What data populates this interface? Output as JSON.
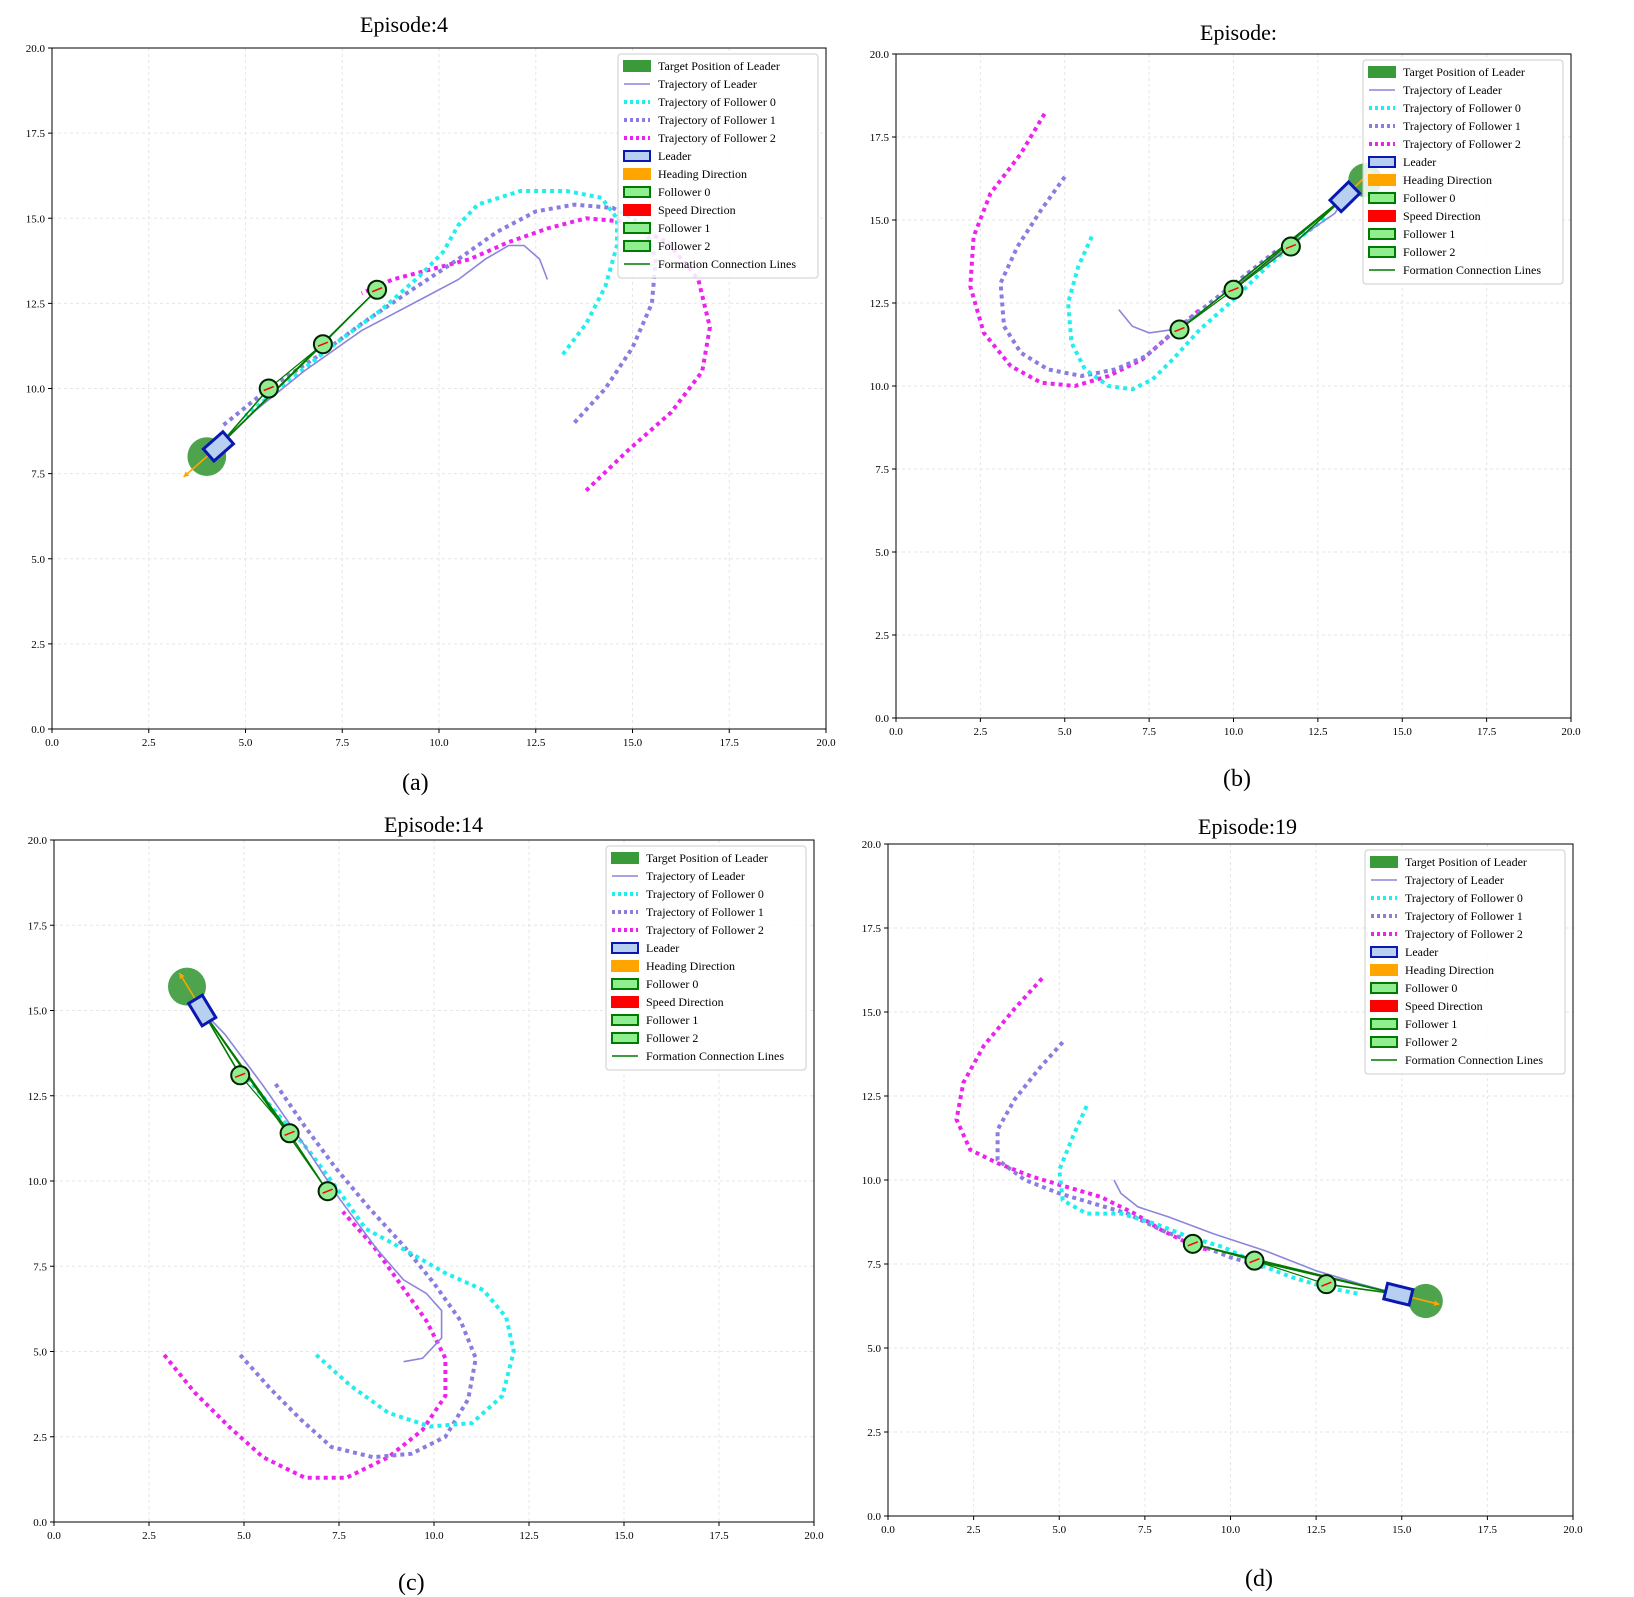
{
  "colors": {
    "target": "#3a9a3a",
    "leader_traj": "#8b86dc",
    "follower0": "#22eef0",
    "follower1": "#8a7de0",
    "follower2": "#ee22ee",
    "leader_edge": "#0a17b0",
    "leader_fill": "#b7cff0",
    "heading": "#ffa500",
    "speed": "#ff0000",
    "follower_edge": "#007a00",
    "follower_fill": "#90ee90",
    "formation": "#007a00"
  },
  "legend_labels": {
    "target": "Target Position of Leader",
    "leader_traj": "Trajectory of Leader",
    "f0_traj": "Trajectory of Follower 0",
    "f1_traj": "Trajectory of Follower 1",
    "f2_traj": "Trajectory of Follower 2",
    "leader": "Leader",
    "heading": "Heading Direction",
    "follower0": "Follower 0",
    "speed": "Speed Direction",
    "follower1": "Follower 1",
    "follower2": "Follower 2",
    "formation": "Formation Connection Lines"
  },
  "chart_data": [
    {
      "type": "line",
      "title": "Episode:4",
      "caption": "(a)",
      "xlim": [
        0,
        20
      ],
      "ylim": [
        0,
        20
      ],
      "xticks": [
        "0.0",
        "2.5",
        "5.0",
        "7.5",
        "10.0",
        "12.5",
        "15.0",
        "17.5",
        "20.0"
      ],
      "yticks": [
        "0.0",
        "2.5",
        "5.0",
        "7.5",
        "10.0",
        "12.5",
        "15.0",
        "17.5",
        "20.0"
      ],
      "grid": true,
      "legend": "top-right",
      "target": [
        4.0,
        8.0
      ],
      "leader_pos": [
        4.3,
        8.3
      ],
      "heading": [
        [
          4.3,
          8.3
        ],
        [
          3.4,
          7.4
        ]
      ],
      "followers": [
        [
          5.6,
          10.0
        ],
        [
          7.0,
          11.3
        ],
        [
          8.4,
          12.9
        ]
      ],
      "series": {
        "leader": [
          [
            12.8,
            13.2
          ],
          [
            12.6,
            13.8
          ],
          [
            12.2,
            14.2
          ],
          [
            11.8,
            14.2
          ],
          [
            11.2,
            13.8
          ],
          [
            10.5,
            13.2
          ],
          [
            9.5,
            12.6
          ],
          [
            8.0,
            11.7
          ],
          [
            6.5,
            10.5
          ],
          [
            5.2,
            9.3
          ],
          [
            4.3,
            8.3
          ]
        ],
        "follower0": [
          [
            13.2,
            11.0
          ],
          [
            13.8,
            11.9
          ],
          [
            14.3,
            13.0
          ],
          [
            14.6,
            14.2
          ],
          [
            14.6,
            15.0
          ],
          [
            14.2,
            15.6
          ],
          [
            13.3,
            15.8
          ],
          [
            12.1,
            15.8
          ],
          [
            11.0,
            15.4
          ],
          [
            10.5,
            14.8
          ],
          [
            10.1,
            14.0
          ],
          [
            9.5,
            13.3
          ],
          [
            8.5,
            12.3
          ],
          [
            7.3,
            11.3
          ],
          [
            6.2,
            10.3
          ],
          [
            5.0,
            9.2
          ]
        ],
        "follower1": [
          [
            13.5,
            9.0
          ],
          [
            14.3,
            10.0
          ],
          [
            15.0,
            11.2
          ],
          [
            15.5,
            12.5
          ],
          [
            15.6,
            13.8
          ],
          [
            15.3,
            14.8
          ],
          [
            14.5,
            15.3
          ],
          [
            13.5,
            15.4
          ],
          [
            12.5,
            15.2
          ],
          [
            11.5,
            14.6
          ],
          [
            10.5,
            13.8
          ],
          [
            9.3,
            12.9
          ],
          [
            8.0,
            11.9
          ],
          [
            6.8,
            10.9
          ],
          [
            5.6,
            10.0
          ],
          [
            4.4,
            8.9
          ]
        ],
        "follower2": [
          [
            13.8,
            7.0
          ],
          [
            14.9,
            8.2
          ],
          [
            16.0,
            9.3
          ],
          [
            16.8,
            10.5
          ],
          [
            17.0,
            11.8
          ],
          [
            16.7,
            13.2
          ],
          [
            15.9,
            14.3
          ],
          [
            14.8,
            14.9
          ],
          [
            13.8,
            15.0
          ],
          [
            12.8,
            14.7
          ],
          [
            11.8,
            14.3
          ],
          [
            10.8,
            13.8
          ],
          [
            9.8,
            13.5
          ],
          [
            8.8,
            13.2
          ],
          [
            8.0,
            12.8
          ]
        ]
      }
    },
    {
      "type": "line",
      "title": "Episode:",
      "caption": "(b)",
      "xlim": [
        0,
        20
      ],
      "ylim": [
        0,
        20
      ],
      "xticks": [
        "0.0",
        "2.5",
        "5.0",
        "7.5",
        "10.0",
        "12.5",
        "15.0",
        "17.5",
        "20.0"
      ],
      "yticks": [
        "0.0",
        "2.5",
        "5.0",
        "7.5",
        "10.0",
        "12.5",
        "15.0",
        "17.5",
        "20.0"
      ],
      "grid": true,
      "legend": "top-right",
      "target": [
        13.9,
        16.2
      ],
      "leader_pos": [
        13.3,
        15.7
      ],
      "heading": [
        [
          13.3,
          15.7
        ],
        [
          14.1,
          16.5
        ]
      ],
      "followers": [
        [
          8.4,
          11.7
        ],
        [
          10.0,
          12.9
        ],
        [
          11.7,
          14.2
        ]
      ],
      "series": {
        "leader": [
          [
            6.6,
            12.3
          ],
          [
            7.0,
            11.8
          ],
          [
            7.5,
            11.6
          ],
          [
            8.2,
            11.7
          ],
          [
            9.0,
            12.2
          ],
          [
            10.0,
            13.0
          ],
          [
            11.0,
            13.7
          ],
          [
            12.0,
            14.5
          ],
          [
            13.0,
            15.2
          ],
          [
            13.3,
            15.7
          ]
        ],
        "follower0": [
          [
            5.8,
            14.5
          ],
          [
            5.4,
            13.6
          ],
          [
            5.1,
            12.5
          ],
          [
            5.2,
            11.3
          ],
          [
            5.6,
            10.5
          ],
          [
            6.3,
            10.0
          ],
          [
            7.0,
            9.9
          ],
          [
            7.6,
            10.2
          ],
          [
            8.2,
            10.8
          ],
          [
            9.0,
            11.7
          ],
          [
            10.0,
            12.6
          ],
          [
            11.0,
            13.6
          ],
          [
            12.0,
            14.5
          ],
          [
            12.8,
            15.1
          ]
        ],
        "follower1": [
          [
            5.0,
            16.3
          ],
          [
            4.3,
            15.3
          ],
          [
            3.6,
            14.2
          ],
          [
            3.1,
            13.1
          ],
          [
            3.2,
            11.8
          ],
          [
            3.7,
            11.0
          ],
          [
            4.5,
            10.5
          ],
          [
            5.5,
            10.3
          ],
          [
            6.5,
            10.5
          ],
          [
            7.4,
            10.9
          ],
          [
            8.3,
            11.7
          ],
          [
            9.3,
            12.5
          ],
          [
            10.3,
            13.3
          ],
          [
            11.3,
            14.1
          ]
        ],
        "follower2": [
          [
            4.4,
            18.2
          ],
          [
            3.7,
            17.0
          ],
          [
            2.8,
            15.8
          ],
          [
            2.3,
            14.5
          ],
          [
            2.2,
            13.0
          ],
          [
            2.6,
            11.6
          ],
          [
            3.4,
            10.6
          ],
          [
            4.3,
            10.1
          ],
          [
            5.3,
            10.0
          ],
          [
            6.3,
            10.3
          ],
          [
            7.3,
            10.8
          ],
          [
            8.2,
            11.6
          ],
          [
            9.0,
            12.3
          ]
        ]
      }
    },
    {
      "type": "line",
      "title": "Episode:14",
      "caption": "(c)",
      "xlim": [
        0,
        20
      ],
      "ylim": [
        0,
        20
      ],
      "xticks": [
        "0.0",
        "2.5",
        "5.0",
        "7.5",
        "10.0",
        "12.5",
        "15.0",
        "17.5",
        "20.0"
      ],
      "yticks": [
        "0.0",
        "2.5",
        "5.0",
        "7.5",
        "10.0",
        "12.5",
        "15.0",
        "17.5",
        "20.0"
      ],
      "grid": true,
      "legend": "top-right",
      "target": [
        3.5,
        15.7
      ],
      "leader_pos": [
        3.9,
        15.0
      ],
      "heading": [
        [
          3.9,
          15.0
        ],
        [
          3.3,
          16.1
        ]
      ],
      "followers": [
        [
          4.9,
          13.1
        ],
        [
          6.2,
          11.4
        ],
        [
          7.2,
          9.7
        ]
      ],
      "series": {
        "leader": [
          [
            9.2,
            4.7
          ],
          [
            9.7,
            4.8
          ],
          [
            10.2,
            5.4
          ],
          [
            10.2,
            6.2
          ],
          [
            9.8,
            6.7
          ],
          [
            9.2,
            7.1
          ],
          [
            8.5,
            8.0
          ],
          [
            7.5,
            9.5
          ],
          [
            6.5,
            11.2
          ],
          [
            5.5,
            12.8
          ],
          [
            4.5,
            14.3
          ],
          [
            3.9,
            15.0
          ]
        ],
        "follower0": [
          [
            6.9,
            4.9
          ],
          [
            7.8,
            4.0
          ],
          [
            8.8,
            3.2
          ],
          [
            9.9,
            2.8
          ],
          [
            11.0,
            2.9
          ],
          [
            11.8,
            3.7
          ],
          [
            12.1,
            5.0
          ],
          [
            11.9,
            6.0
          ],
          [
            11.3,
            6.8
          ],
          [
            10.3,
            7.3
          ],
          [
            9.2,
            8.0
          ],
          [
            8.2,
            8.6
          ],
          [
            7.5,
            9.7
          ],
          [
            6.7,
            10.9
          ],
          [
            5.7,
            12.2
          ],
          [
            4.8,
            13.4
          ]
        ],
        "follower1": [
          [
            4.9,
            4.9
          ],
          [
            5.7,
            3.9
          ],
          [
            6.5,
            3.0
          ],
          [
            7.3,
            2.2
          ],
          [
            8.4,
            1.9
          ],
          [
            9.4,
            2.0
          ],
          [
            10.3,
            2.5
          ],
          [
            10.9,
            3.6
          ],
          [
            11.1,
            4.8
          ],
          [
            10.7,
            5.9
          ],
          [
            10.0,
            7.0
          ],
          [
            9.2,
            8.1
          ],
          [
            8.3,
            9.2
          ],
          [
            7.4,
            10.4
          ],
          [
            6.6,
            11.6
          ],
          [
            5.8,
            12.9
          ]
        ],
        "follower2": [
          [
            2.9,
            4.9
          ],
          [
            3.7,
            3.8
          ],
          [
            4.6,
            2.8
          ],
          [
            5.5,
            1.9
          ],
          [
            6.6,
            1.3
          ],
          [
            7.7,
            1.3
          ],
          [
            8.8,
            1.9
          ],
          [
            9.7,
            2.7
          ],
          [
            10.3,
            3.7
          ],
          [
            10.3,
            4.8
          ],
          [
            9.8,
            5.9
          ],
          [
            9.1,
            7.0
          ],
          [
            8.4,
            8.1
          ],
          [
            7.6,
            9.1
          ]
        ]
      }
    },
    {
      "type": "line",
      "title": "Episode:19",
      "caption": "(d)",
      "xlim": [
        0,
        20
      ],
      "ylim": [
        0,
        20
      ],
      "xticks": [
        "0.0",
        "2.5",
        "5.0",
        "7.5",
        "10.0",
        "12.5",
        "15.0",
        "17.5",
        "20.0"
      ],
      "yticks": [
        "0.0",
        "2.5",
        "5.0",
        "7.5",
        "10.0",
        "12.5",
        "15.0",
        "17.5",
        "20.0"
      ],
      "grid": true,
      "legend": "top-right",
      "target": [
        15.7,
        6.4
      ],
      "leader_pos": [
        14.9,
        6.6
      ],
      "heading": [
        [
          14.9,
          6.6
        ],
        [
          16.1,
          6.3
        ]
      ],
      "followers": [
        [
          8.9,
          8.1
        ],
        [
          10.7,
          7.6
        ],
        [
          12.8,
          6.9
        ]
      ],
      "series": {
        "leader": [
          [
            6.6,
            10.0
          ],
          [
            6.8,
            9.6
          ],
          [
            7.3,
            9.2
          ],
          [
            8.2,
            8.9
          ],
          [
            9.5,
            8.4
          ],
          [
            11.0,
            7.9
          ],
          [
            12.5,
            7.3
          ],
          [
            13.8,
            6.9
          ],
          [
            14.9,
            6.6
          ]
        ],
        "follower0": [
          [
            5.8,
            12.2
          ],
          [
            5.4,
            11.3
          ],
          [
            5.0,
            10.3
          ],
          [
            5.1,
            9.4
          ],
          [
            5.8,
            9.0
          ],
          [
            6.8,
            9.0
          ],
          [
            7.8,
            8.7
          ],
          [
            8.8,
            8.3
          ],
          [
            9.8,
            8.0
          ],
          [
            10.8,
            7.5
          ],
          [
            11.8,
            7.1
          ],
          [
            12.8,
            6.8
          ],
          [
            13.8,
            6.6
          ]
        ],
        "follower1": [
          [
            5.1,
            14.1
          ],
          [
            4.4,
            13.3
          ],
          [
            3.7,
            12.4
          ],
          [
            3.2,
            11.5
          ],
          [
            3.2,
            10.6
          ],
          [
            4.0,
            10.0
          ],
          [
            5.0,
            9.6
          ],
          [
            6.0,
            9.3
          ],
          [
            7.0,
            9.0
          ],
          [
            8.0,
            8.5
          ],
          [
            9.0,
            8.1
          ],
          [
            10.0,
            7.7
          ],
          [
            11.0,
            7.4
          ]
        ],
        "follower2": [
          [
            4.5,
            16.0
          ],
          [
            3.7,
            15.1
          ],
          [
            2.8,
            14.0
          ],
          [
            2.2,
            12.9
          ],
          [
            2.0,
            11.8
          ],
          [
            2.4,
            10.9
          ],
          [
            3.2,
            10.5
          ],
          [
            4.2,
            10.1
          ],
          [
            5.2,
            9.8
          ],
          [
            6.2,
            9.5
          ],
          [
            7.2,
            9.0
          ],
          [
            8.0,
            8.5
          ],
          [
            8.8,
            8.1
          ],
          [
            9.4,
            7.9
          ]
        ]
      }
    }
  ]
}
